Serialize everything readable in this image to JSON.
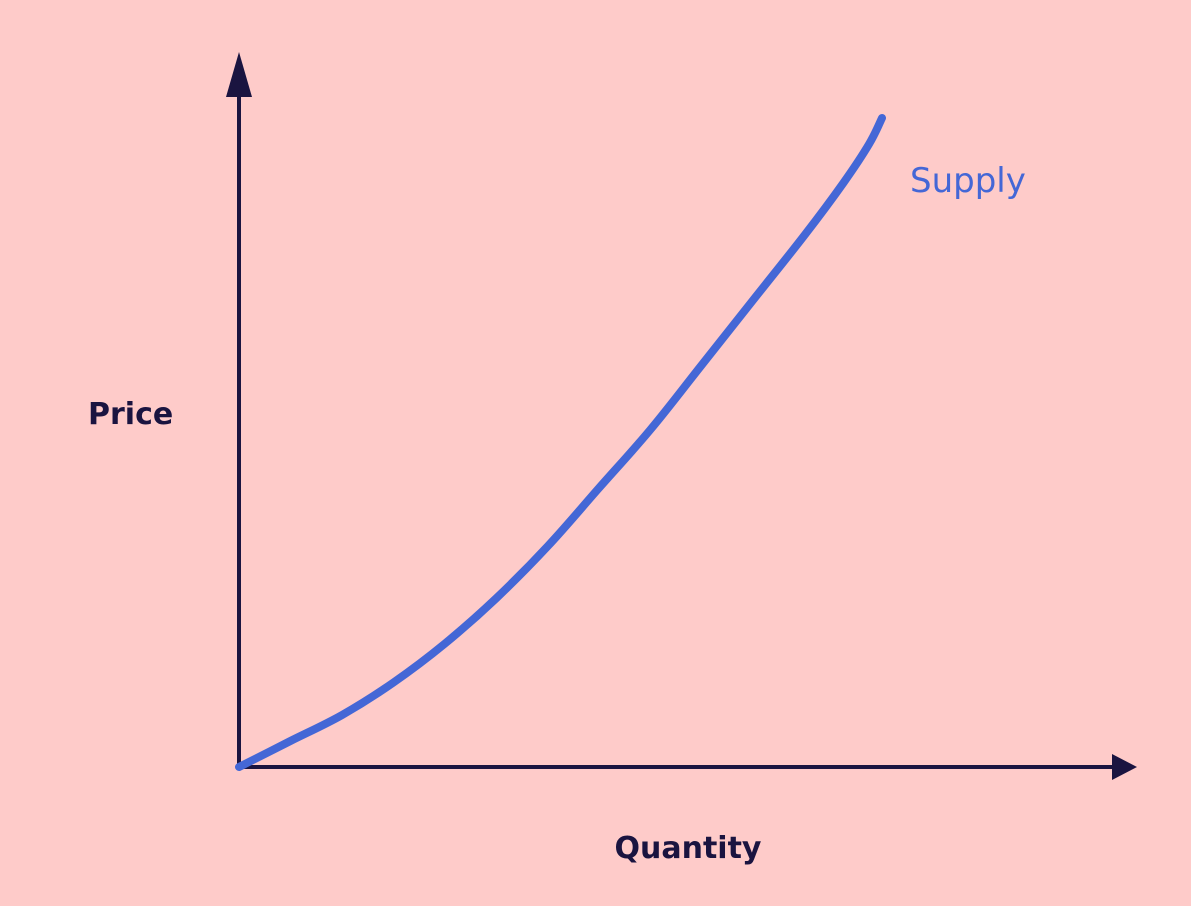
{
  "chart_data": {
    "type": "line",
    "title": "",
    "xlabel": "Quantity",
    "ylabel": "Price",
    "grid": false,
    "legend": "none",
    "axis_ticks": "none",
    "series": [
      {
        "name": "Supply",
        "curve": "convex, rising steeply",
        "x": [
          0,
          0.08,
          0.16,
          0.24,
          0.32,
          0.4,
          0.48,
          0.56,
          0.64,
          0.72,
          0.8,
          0.88,
          0.94,
          0.98,
          1.0
        ],
        "y": [
          0,
          0.04,
          0.08,
          0.13,
          0.19,
          0.26,
          0.34,
          0.43,
          0.52,
          0.62,
          0.72,
          0.82,
          0.9,
          0.96,
          1.0
        ]
      }
    ]
  },
  "colors": {
    "background": "#fecbc9",
    "axis": "#1a1440",
    "curve": "#4467d6",
    "series_label": "#4467d6",
    "axis_label": "#1a1440"
  }
}
